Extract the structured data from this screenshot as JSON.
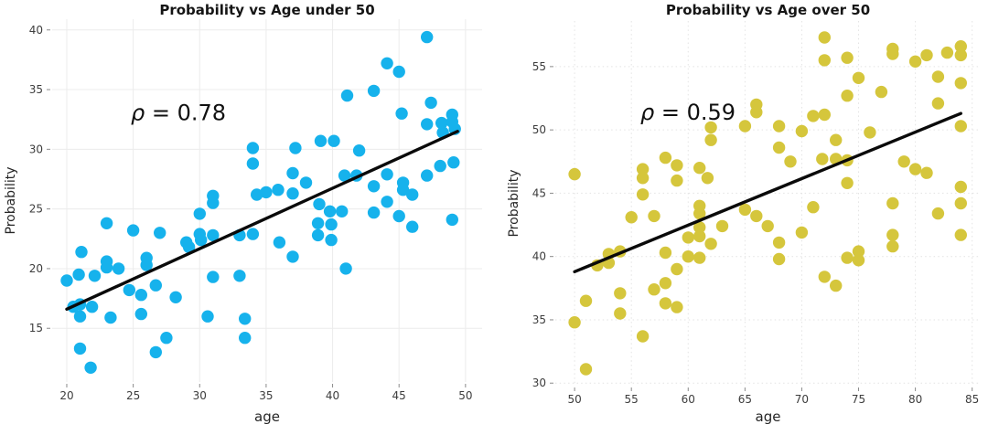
{
  "chart_data": [
    {
      "type": "scatter",
      "title": "Probability vs Age under 50",
      "xlabel": "age",
      "ylabel": "Probability",
      "annotation": "ρ = 0.78",
      "annotation_parts": {
        "rho": "ρ",
        "rest": " = 0.78"
      },
      "correlation_rho": 0.78,
      "dot_color_hex": "#16b2ec",
      "trend_color_hex": "#0a0a0a",
      "grid": "solid",
      "legend": "none",
      "xlim": [
        18.9,
        51.25
      ],
      "ylim": [
        10.5,
        40.9
      ],
      "xticks": [
        20,
        25,
        30,
        35,
        40,
        45,
        50
      ],
      "yticks": [
        15,
        20,
        25,
        30,
        35,
        40
      ],
      "trend_line": {
        "x": [
          20,
          49.4
        ],
        "y": [
          16.6,
          31.5
        ]
      },
      "points": [
        [
          20,
          19
        ],
        [
          20.9,
          19.5
        ],
        [
          22.1,
          19.4
        ],
        [
          21.1,
          21.4
        ],
        [
          21,
          17
        ],
        [
          20.5,
          16.8
        ],
        [
          21,
          16
        ],
        [
          23.3,
          15.9
        ],
        [
          21,
          13.3
        ],
        [
          21.8,
          11.7
        ],
        [
          23,
          23.8
        ],
        [
          23,
          20.6
        ],
        [
          23,
          20.1
        ],
        [
          23.9,
          20
        ],
        [
          25,
          23.2
        ],
        [
          24.7,
          18.2
        ],
        [
          25.6,
          17.8
        ],
        [
          26,
          20.9
        ],
        [
          26,
          20.3
        ],
        [
          26.7,
          18.6
        ],
        [
          25.6,
          16.2
        ],
        [
          27,
          23
        ],
        [
          27.5,
          14.2
        ],
        [
          26.7,
          13
        ],
        [
          28.2,
          17.6
        ],
        [
          29,
          22.2
        ],
        [
          29.2,
          21.8
        ],
        [
          30,
          22.9
        ],
        [
          30.1,
          22.4
        ],
        [
          31,
          22.8
        ],
        [
          30,
          24.6
        ],
        [
          33,
          22.8
        ],
        [
          34,
          22.9
        ],
        [
          31,
          19.3
        ],
        [
          33,
          19.4
        ],
        [
          30.6,
          16
        ],
        [
          33.4,
          15.8
        ],
        [
          33.4,
          14.2
        ],
        [
          31,
          26.1
        ],
        [
          31,
          25.5
        ],
        [
          34,
          30.1
        ],
        [
          34,
          28.8
        ],
        [
          34.3,
          26.2
        ],
        [
          35,
          26.4
        ],
        [
          35.9,
          26.6
        ],
        [
          37,
          26.3
        ],
        [
          36,
          22.2
        ],
        [
          37,
          21
        ],
        [
          37,
          28
        ],
        [
          37.2,
          30.1
        ],
        [
          38,
          27.2
        ],
        [
          39,
          25.4
        ],
        [
          38.9,
          23.8
        ],
        [
          39.9,
          23.7
        ],
        [
          38.9,
          22.8
        ],
        [
          39.9,
          22.4
        ],
        [
          39.8,
          24.8
        ],
        [
          40.7,
          24.8
        ],
        [
          41,
          20
        ],
        [
          39.1,
          30.7
        ],
        [
          40.1,
          30.7
        ],
        [
          42,
          29.9
        ],
        [
          40.9,
          27.8
        ],
        [
          41.8,
          27.8
        ],
        [
          41.1,
          34.5
        ],
        [
          43.1,
          34.9
        ],
        [
          43.1,
          26.9
        ],
        [
          43.1,
          24.7
        ],
        [
          44.1,
          37.2
        ],
        [
          44.1,
          27.9
        ],
        [
          44.1,
          25.6
        ],
        [
          45,
          36.5
        ],
        [
          45.2,
          33
        ],
        [
          45.3,
          27.2
        ],
        [
          45.3,
          26.6
        ],
        [
          46,
          26.2
        ],
        [
          45,
          24.4
        ],
        [
          46,
          23.5
        ],
        [
          47.1,
          39.4
        ],
        [
          47.4,
          33.9
        ],
        [
          47.1,
          32.1
        ],
        [
          48.2,
          32.2
        ],
        [
          49,
          32.9
        ],
        [
          49,
          32.3
        ],
        [
          49.2,
          31.7
        ],
        [
          48.3,
          31.4
        ],
        [
          47.1,
          27.8
        ],
        [
          48.1,
          28.6
        ],
        [
          49.1,
          28.9
        ],
        [
          49,
          24.1
        ],
        [
          21.9,
          16.8
        ]
      ]
    },
    {
      "type": "scatter",
      "title": "Probability vs Age over 50",
      "xlabel": "age",
      "ylabel": "Probability",
      "annotation": "ρ = 0.59",
      "annotation_parts": {
        "rho": "ρ",
        "rest": " = 0.59"
      },
      "correlation_rho": 0.59,
      "dot_color_hex": "#d5c63c",
      "trend_color_hex": "#0a0a0a",
      "grid": "dotted",
      "legend": "none",
      "xlim": [
        48.3,
        85.75
      ],
      "ylim": [
        29.8,
        58.6
      ],
      "xticks": [
        50,
        55,
        60,
        65,
        70,
        75,
        80,
        85
      ],
      "yticks": [
        30,
        35,
        40,
        45,
        50,
        55
      ],
      "trend_line": {
        "x": [
          50,
          84
        ],
        "y": [
          38.8,
          51.3
        ]
      },
      "points": [
        [
          50,
          46.5
        ],
        [
          51,
          36.5
        ],
        [
          50,
          34.8
        ],
        [
          51,
          31.1
        ],
        [
          52,
          39.3
        ],
        [
          53,
          39.5
        ],
        [
          53,
          40.2
        ],
        [
          54,
          40.4
        ],
        [
          54,
          37.1
        ],
        [
          54,
          35.5
        ],
        [
          55,
          43.1
        ],
        [
          56,
          44.9
        ],
        [
          56,
          46.9
        ],
        [
          56,
          46.2
        ],
        [
          56,
          33.7
        ],
        [
          57,
          43.2
        ],
        [
          57,
          37.4
        ],
        [
          58,
          37.9
        ],
        [
          58,
          40.3
        ],
        [
          58,
          36.3
        ],
        [
          58,
          47.8
        ],
        [
          59,
          47.2
        ],
        [
          59,
          46
        ],
        [
          59,
          39
        ],
        [
          59,
          36
        ],
        [
          60,
          41.5
        ],
        [
          60,
          40
        ],
        [
          61,
          44
        ],
        [
          61,
          43.4
        ],
        [
          61,
          42.3
        ],
        [
          61,
          41.6
        ],
        [
          61,
          39.9
        ],
        [
          61,
          47
        ],
        [
          61.7,
          46.2
        ],
        [
          62,
          50.2
        ],
        [
          62,
          49.2
        ],
        [
          62,
          41
        ],
        [
          63,
          42.4
        ],
        [
          65,
          50.3
        ],
        [
          65,
          43.7
        ],
        [
          66,
          52
        ],
        [
          66,
          51.4
        ],
        [
          66,
          43.2
        ],
        [
          67,
          42.4
        ],
        [
          68,
          50.3
        ],
        [
          68,
          48.6
        ],
        [
          68,
          41.1
        ],
        [
          68,
          39.8
        ],
        [
          69,
          47.5
        ],
        [
          70,
          49.9
        ],
        [
          70,
          41.9
        ],
        [
          71,
          51.1
        ],
        [
          71,
          43.9
        ],
        [
          72,
          51.2
        ],
        [
          72,
          57.3
        ],
        [
          72,
          55.5
        ],
        [
          72,
          38.4
        ],
        [
          73,
          49.2
        ],
        [
          71.8,
          47.7
        ],
        [
          73,
          47.7
        ],
        [
          74,
          47.6
        ],
        [
          73,
          37.7
        ],
        [
          74,
          55.7
        ],
        [
          74,
          52.7
        ],
        [
          74,
          45.8
        ],
        [
          74,
          39.9
        ],
        [
          75,
          54.1
        ],
        [
          75,
          40.4
        ],
        [
          75,
          39.7
        ],
        [
          76,
          49.8
        ],
        [
          77,
          53
        ],
        [
          78,
          56.4
        ],
        [
          78,
          56
        ],
        [
          78,
          44.2
        ],
        [
          78,
          41.7
        ],
        [
          78,
          40.8
        ],
        [
          79,
          47.5
        ],
        [
          80,
          55.4
        ],
        [
          80,
          46.9
        ],
        [
          81,
          55.9
        ],
        [
          81,
          46.6
        ],
        [
          82,
          54.2
        ],
        [
          82,
          52.1
        ],
        [
          82,
          43.4
        ],
        [
          82.8,
          56.1
        ],
        [
          84,
          56.6
        ],
        [
          84,
          55.9
        ],
        [
          84,
          53.7
        ],
        [
          84,
          50.3
        ],
        [
          84,
          45.5
        ],
        [
          84,
          44.2
        ],
        [
          84,
          41.7
        ]
      ]
    }
  ]
}
